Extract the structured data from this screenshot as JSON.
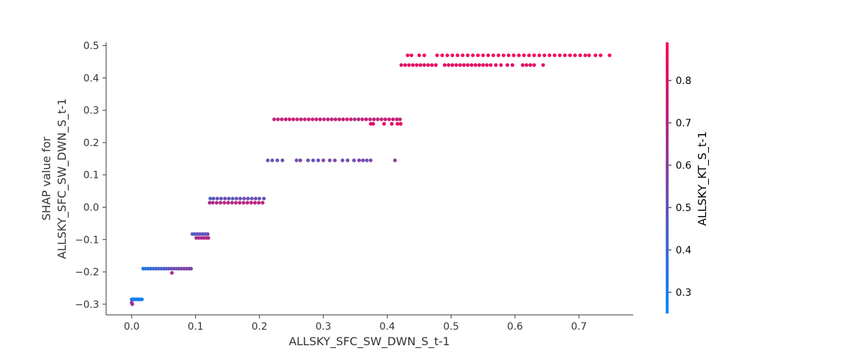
{
  "chart_data": {
    "type": "scatter",
    "xlabel": "ALLSKY_SFC_SW_DWN_S_t-1",
    "ylabel_lines": [
      "SHAP value for",
      "ALLSKY_SFC_SW_DWN_S_t-1"
    ],
    "colorbar_label": "ALLSKY_KT_S_t-1",
    "xlim": [
      -0.04,
      0.785
    ],
    "ylim": [
      -0.333,
      0.51
    ],
    "x_ticks": [
      0.0,
      0.1,
      0.2,
      0.3,
      0.4,
      0.5,
      0.6,
      0.7
    ],
    "x_tick_labels": [
      "0.0",
      "0.1",
      "0.2",
      "0.3",
      "0.4",
      "0.5",
      "0.6",
      "0.7"
    ],
    "y_ticks": [
      -0.3,
      -0.2,
      -0.1,
      0.0,
      0.1,
      0.2,
      0.3,
      0.4,
      0.5
    ],
    "y_tick_labels": [
      "−0.3",
      "−0.2",
      "−0.1",
      "0.0",
      "0.1",
      "0.2",
      "0.3",
      "0.4",
      "0.5"
    ],
    "colorbar_range": [
      0.25,
      0.89
    ],
    "colorbar_ticks": [
      0.3,
      0.4,
      0.5,
      0.6,
      0.7,
      0.8
    ],
    "colorbar_tick_labels": [
      "0.3",
      "0.4",
      "0.5",
      "0.6",
      "0.7",
      "0.8"
    ],
    "colormap": [
      "#008afb",
      "#ff0052"
    ],
    "points": [
      {
        "x": 0.0,
        "y": -0.285,
        "c": 0.3
      },
      {
        "x": 0.002,
        "y": -0.285,
        "c": 0.31
      },
      {
        "x": 0.004,
        "y": -0.285,
        "c": 0.29
      },
      {
        "x": 0.006,
        "y": -0.285,
        "c": 0.32
      },
      {
        "x": 0.008,
        "y": -0.285,
        "c": 0.3
      },
      {
        "x": 0.01,
        "y": -0.285,
        "c": 0.31
      },
      {
        "x": 0.012,
        "y": -0.285,
        "c": 0.33
      },
      {
        "x": 0.014,
        "y": -0.285,
        "c": 0.3
      },
      {
        "x": 0.016,
        "y": -0.285,
        "c": 0.29
      },
      {
        "x": 0.0,
        "y": -0.295,
        "c": 0.62
      },
      {
        "x": 0.001,
        "y": -0.3,
        "c": 0.68
      },
      {
        "x": 0.018,
        "y": -0.19,
        "c": 0.33
      },
      {
        "x": 0.022,
        "y": -0.19,
        "c": 0.35
      },
      {
        "x": 0.026,
        "y": -0.19,
        "c": 0.38
      },
      {
        "x": 0.03,
        "y": -0.19,
        "c": 0.4
      },
      {
        "x": 0.034,
        "y": -0.19,
        "c": 0.36
      },
      {
        "x": 0.038,
        "y": -0.19,
        "c": 0.42
      },
      {
        "x": 0.042,
        "y": -0.19,
        "c": 0.45
      },
      {
        "x": 0.046,
        "y": -0.19,
        "c": 0.39
      },
      {
        "x": 0.05,
        "y": -0.19,
        "c": 0.47
      },
      {
        "x": 0.054,
        "y": -0.19,
        "c": 0.5
      },
      {
        "x": 0.058,
        "y": -0.19,
        "c": 0.44
      },
      {
        "x": 0.062,
        "y": -0.19,
        "c": 0.52
      },
      {
        "x": 0.066,
        "y": -0.19,
        "c": 0.55
      },
      {
        "x": 0.07,
        "y": -0.19,
        "c": 0.48
      },
      {
        "x": 0.074,
        "y": -0.19,
        "c": 0.57
      },
      {
        "x": 0.078,
        "y": -0.19,
        "c": 0.53
      },
      {
        "x": 0.082,
        "y": -0.19,
        "c": 0.6
      },
      {
        "x": 0.086,
        "y": -0.19,
        "c": 0.56
      },
      {
        "x": 0.09,
        "y": -0.19,
        "c": 0.58
      },
      {
        "x": 0.093,
        "y": -0.19,
        "c": 0.54
      },
      {
        "x": 0.063,
        "y": -0.203,
        "c": 0.66
      },
      {
        "x": 0.095,
        "y": -0.083,
        "c": 0.45
      },
      {
        "x": 0.099,
        "y": -0.083,
        "c": 0.48
      },
      {
        "x": 0.103,
        "y": -0.083,
        "c": 0.5
      },
      {
        "x": 0.107,
        "y": -0.083,
        "c": 0.47
      },
      {
        "x": 0.111,
        "y": -0.083,
        "c": 0.52
      },
      {
        "x": 0.115,
        "y": -0.083,
        "c": 0.49
      },
      {
        "x": 0.119,
        "y": -0.083,
        "c": 0.51
      },
      {
        "x": 0.101,
        "y": -0.095,
        "c": 0.66
      },
      {
        "x": 0.105,
        "y": -0.095,
        "c": 0.7
      },
      {
        "x": 0.109,
        "y": -0.095,
        "c": 0.68
      },
      {
        "x": 0.113,
        "y": -0.095,
        "c": 0.72
      },
      {
        "x": 0.117,
        "y": -0.095,
        "c": 0.69
      },
      {
        "x": 0.12,
        "y": -0.095,
        "c": 0.71
      },
      {
        "x": 0.123,
        "y": 0.027,
        "c": 0.45
      },
      {
        "x": 0.128,
        "y": 0.027,
        "c": 0.48
      },
      {
        "x": 0.134,
        "y": 0.027,
        "c": 0.52
      },
      {
        "x": 0.14,
        "y": 0.027,
        "c": 0.47
      },
      {
        "x": 0.146,
        "y": 0.027,
        "c": 0.55
      },
      {
        "x": 0.152,
        "y": 0.027,
        "c": 0.5
      },
      {
        "x": 0.158,
        "y": 0.027,
        "c": 0.46
      },
      {
        "x": 0.164,
        "y": 0.027,
        "c": 0.53
      },
      {
        "x": 0.17,
        "y": 0.027,
        "c": 0.49
      },
      {
        "x": 0.176,
        "y": 0.027,
        "c": 0.57
      },
      {
        "x": 0.182,
        "y": 0.027,
        "c": 0.51
      },
      {
        "x": 0.188,
        "y": 0.027,
        "c": 0.48
      },
      {
        "x": 0.194,
        "y": 0.027,
        "c": 0.54
      },
      {
        "x": 0.2,
        "y": 0.027,
        "c": 0.5
      },
      {
        "x": 0.207,
        "y": 0.027,
        "c": 0.52
      },
      {
        "x": 0.122,
        "y": 0.014,
        "c": 0.66
      },
      {
        "x": 0.127,
        "y": 0.014,
        "c": 0.7
      },
      {
        "x": 0.133,
        "y": 0.014,
        "c": 0.68
      },
      {
        "x": 0.139,
        "y": 0.014,
        "c": 0.72
      },
      {
        "x": 0.145,
        "y": 0.014,
        "c": 0.69
      },
      {
        "x": 0.151,
        "y": 0.014,
        "c": 0.74
      },
      {
        "x": 0.157,
        "y": 0.014,
        "c": 0.67
      },
      {
        "x": 0.163,
        "y": 0.014,
        "c": 0.71
      },
      {
        "x": 0.169,
        "y": 0.014,
        "c": 0.75
      },
      {
        "x": 0.175,
        "y": 0.014,
        "c": 0.68
      },
      {
        "x": 0.181,
        "y": 0.014,
        "c": 0.73
      },
      {
        "x": 0.187,
        "y": 0.014,
        "c": 0.7
      },
      {
        "x": 0.193,
        "y": 0.014,
        "c": 0.76
      },
      {
        "x": 0.199,
        "y": 0.014,
        "c": 0.69
      },
      {
        "x": 0.205,
        "y": 0.014,
        "c": 0.72
      },
      {
        "x": 0.213,
        "y": 0.145,
        "c": 0.5
      },
      {
        "x": 0.22,
        "y": 0.145,
        "c": 0.53
      },
      {
        "x": 0.228,
        "y": 0.145,
        "c": 0.48
      },
      {
        "x": 0.236,
        "y": 0.145,
        "c": 0.55
      },
      {
        "x": 0.258,
        "y": 0.145,
        "c": 0.52
      },
      {
        "x": 0.264,
        "y": 0.145,
        "c": 0.57
      },
      {
        "x": 0.276,
        "y": 0.145,
        "c": 0.51
      },
      {
        "x": 0.284,
        "y": 0.145,
        "c": 0.54
      },
      {
        "x": 0.292,
        "y": 0.145,
        "c": 0.49
      },
      {
        "x": 0.3,
        "y": 0.145,
        "c": 0.56
      },
      {
        "x": 0.31,
        "y": 0.145,
        "c": 0.53
      },
      {
        "x": 0.318,
        "y": 0.145,
        "c": 0.59
      },
      {
        "x": 0.33,
        "y": 0.145,
        "c": 0.5
      },
      {
        "x": 0.338,
        "y": 0.145,
        "c": 0.55
      },
      {
        "x": 0.348,
        "y": 0.145,
        "c": 0.52
      },
      {
        "x": 0.356,
        "y": 0.145,
        "c": 0.58
      },
      {
        "x": 0.362,
        "y": 0.145,
        "c": 0.54
      },
      {
        "x": 0.368,
        "y": 0.145,
        "c": 0.51
      },
      {
        "x": 0.374,
        "y": 0.145,
        "c": 0.56
      },
      {
        "x": 0.412,
        "y": 0.145,
        "c": 0.6
      },
      {
        "x": 0.223,
        "y": 0.272,
        "c": 0.72
      },
      {
        "x": 0.229,
        "y": 0.272,
        "c": 0.75
      },
      {
        "x": 0.235,
        "y": 0.272,
        "c": 0.7
      },
      {
        "x": 0.241,
        "y": 0.272,
        "c": 0.78
      },
      {
        "x": 0.247,
        "y": 0.272,
        "c": 0.74
      },
      {
        "x": 0.253,
        "y": 0.272,
        "c": 0.8
      },
      {
        "x": 0.259,
        "y": 0.272,
        "c": 0.71
      },
      {
        "x": 0.265,
        "y": 0.272,
        "c": 0.76
      },
      {
        "x": 0.271,
        "y": 0.272,
        "c": 0.73
      },
      {
        "x": 0.277,
        "y": 0.272,
        "c": 0.79
      },
      {
        "x": 0.283,
        "y": 0.272,
        "c": 0.7
      },
      {
        "x": 0.289,
        "y": 0.272,
        "c": 0.77
      },
      {
        "x": 0.295,
        "y": 0.272,
        "c": 0.74
      },
      {
        "x": 0.301,
        "y": 0.272,
        "c": 0.72
      },
      {
        "x": 0.307,
        "y": 0.272,
        "c": 0.78
      },
      {
        "x": 0.313,
        "y": 0.272,
        "c": 0.68
      },
      {
        "x": 0.319,
        "y": 0.272,
        "c": 0.75
      },
      {
        "x": 0.325,
        "y": 0.272,
        "c": 0.71
      },
      {
        "x": 0.331,
        "y": 0.272,
        "c": 0.8
      },
      {
        "x": 0.337,
        "y": 0.272,
        "c": 0.73
      },
      {
        "x": 0.343,
        "y": 0.272,
        "c": 0.76
      },
      {
        "x": 0.349,
        "y": 0.272,
        "c": 0.66
      },
      {
        "x": 0.355,
        "y": 0.272,
        "c": 0.74
      },
      {
        "x": 0.361,
        "y": 0.272,
        "c": 0.7
      },
      {
        "x": 0.367,
        "y": 0.272,
        "c": 0.78
      },
      {
        "x": 0.373,
        "y": 0.272,
        "c": 0.72
      },
      {
        "x": 0.379,
        "y": 0.272,
        "c": 0.75
      },
      {
        "x": 0.385,
        "y": 0.272,
        "c": 0.69
      },
      {
        "x": 0.391,
        "y": 0.272,
        "c": 0.77
      },
      {
        "x": 0.397,
        "y": 0.272,
        "c": 0.73
      },
      {
        "x": 0.403,
        "y": 0.272,
        "c": 0.79
      },
      {
        "x": 0.409,
        "y": 0.272,
        "c": 0.74
      },
      {
        "x": 0.415,
        "y": 0.272,
        "c": 0.76
      },
      {
        "x": 0.42,
        "y": 0.272,
        "c": 0.72
      },
      {
        "x": 0.374,
        "y": 0.258,
        "c": 0.8
      },
      {
        "x": 0.378,
        "y": 0.258,
        "c": 0.82
      },
      {
        "x": 0.395,
        "y": 0.258,
        "c": 0.84
      },
      {
        "x": 0.407,
        "y": 0.258,
        "c": 0.81
      },
      {
        "x": 0.416,
        "y": 0.258,
        "c": 0.83
      },
      {
        "x": 0.421,
        "y": 0.258,
        "c": 0.85
      },
      {
        "x": 0.432,
        "y": 0.47,
        "c": 0.86
      },
      {
        "x": 0.438,
        "y": 0.47,
        "c": 0.87
      },
      {
        "x": 0.45,
        "y": 0.47,
        "c": 0.85
      },
      {
        "x": 0.458,
        "y": 0.47,
        "c": 0.88
      },
      {
        "x": 0.478,
        "y": 0.47,
        "c": 0.86
      },
      {
        "x": 0.486,
        "y": 0.47,
        "c": 0.87
      },
      {
        "x": 0.494,
        "y": 0.47,
        "c": 0.85
      },
      {
        "x": 0.502,
        "y": 0.47,
        "c": 0.88
      },
      {
        "x": 0.51,
        "y": 0.47,
        "c": 0.86
      },
      {
        "x": 0.518,
        "y": 0.47,
        "c": 0.87
      },
      {
        "x": 0.526,
        "y": 0.47,
        "c": 0.85
      },
      {
        "x": 0.534,
        "y": 0.47,
        "c": 0.88
      },
      {
        "x": 0.542,
        "y": 0.47,
        "c": 0.86
      },
      {
        "x": 0.55,
        "y": 0.47,
        "c": 0.87
      },
      {
        "x": 0.558,
        "y": 0.47,
        "c": 0.85
      },
      {
        "x": 0.566,
        "y": 0.47,
        "c": 0.88
      },
      {
        "x": 0.574,
        "y": 0.47,
        "c": 0.86
      },
      {
        "x": 0.582,
        "y": 0.47,
        "c": 0.87
      },
      {
        "x": 0.59,
        "y": 0.47,
        "c": 0.85
      },
      {
        "x": 0.598,
        "y": 0.47,
        "c": 0.88
      },
      {
        "x": 0.606,
        "y": 0.47,
        "c": 0.86
      },
      {
        "x": 0.614,
        "y": 0.47,
        "c": 0.87
      },
      {
        "x": 0.622,
        "y": 0.47,
        "c": 0.85
      },
      {
        "x": 0.63,
        "y": 0.47,
        "c": 0.88
      },
      {
        "x": 0.638,
        "y": 0.47,
        "c": 0.86
      },
      {
        "x": 0.646,
        "y": 0.47,
        "c": 0.87
      },
      {
        "x": 0.654,
        "y": 0.47,
        "c": 0.85
      },
      {
        "x": 0.662,
        "y": 0.47,
        "c": 0.88
      },
      {
        "x": 0.67,
        "y": 0.47,
        "c": 0.86
      },
      {
        "x": 0.678,
        "y": 0.47,
        "c": 0.87
      },
      {
        "x": 0.686,
        "y": 0.47,
        "c": 0.85
      },
      {
        "x": 0.694,
        "y": 0.47,
        "c": 0.88
      },
      {
        "x": 0.702,
        "y": 0.47,
        "c": 0.86
      },
      {
        "x": 0.71,
        "y": 0.47,
        "c": 0.87
      },
      {
        "x": 0.716,
        "y": 0.47,
        "c": 0.85
      },
      {
        "x": 0.726,
        "y": 0.47,
        "c": 0.88
      },
      {
        "x": 0.734,
        "y": 0.47,
        "c": 0.86
      },
      {
        "x": 0.748,
        "y": 0.47,
        "c": 0.87
      },
      {
        "x": 0.422,
        "y": 0.44,
        "c": 0.8
      },
      {
        "x": 0.428,
        "y": 0.44,
        "c": 0.82
      },
      {
        "x": 0.434,
        "y": 0.44,
        "c": 0.79
      },
      {
        "x": 0.44,
        "y": 0.44,
        "c": 0.83
      },
      {
        "x": 0.446,
        "y": 0.44,
        "c": 0.81
      },
      {
        "x": 0.452,
        "y": 0.44,
        "c": 0.84
      },
      {
        "x": 0.458,
        "y": 0.44,
        "c": 0.8
      },
      {
        "x": 0.464,
        "y": 0.44,
        "c": 0.82
      },
      {
        "x": 0.47,
        "y": 0.44,
        "c": 0.85
      },
      {
        "x": 0.476,
        "y": 0.44,
        "c": 0.81
      },
      {
        "x": 0.49,
        "y": 0.44,
        "c": 0.83
      },
      {
        "x": 0.496,
        "y": 0.44,
        "c": 0.8
      },
      {
        "x": 0.502,
        "y": 0.44,
        "c": 0.84
      },
      {
        "x": 0.508,
        "y": 0.44,
        "c": 0.82
      },
      {
        "x": 0.514,
        "y": 0.44,
        "c": 0.79
      },
      {
        "x": 0.52,
        "y": 0.44,
        "c": 0.83
      },
      {
        "x": 0.526,
        "y": 0.44,
        "c": 0.81
      },
      {
        "x": 0.532,
        "y": 0.44,
        "c": 0.85
      },
      {
        "x": 0.538,
        "y": 0.44,
        "c": 0.8
      },
      {
        "x": 0.544,
        "y": 0.44,
        "c": 0.82
      },
      {
        "x": 0.55,
        "y": 0.44,
        "c": 0.84
      },
      {
        "x": 0.556,
        "y": 0.44,
        "c": 0.81
      },
      {
        "x": 0.562,
        "y": 0.44,
        "c": 0.83
      },
      {
        "x": 0.57,
        "y": 0.44,
        "c": 0.8
      },
      {
        "x": 0.578,
        "y": 0.44,
        "c": 0.82
      },
      {
        "x": 0.588,
        "y": 0.44,
        "c": 0.84
      },
      {
        "x": 0.596,
        "y": 0.44,
        "c": 0.81
      },
      {
        "x": 0.612,
        "y": 0.44,
        "c": 0.83
      },
      {
        "x": 0.618,
        "y": 0.44,
        "c": 0.8
      },
      {
        "x": 0.624,
        "y": 0.44,
        "c": 0.82
      },
      {
        "x": 0.63,
        "y": 0.44,
        "c": 0.84
      },
      {
        "x": 0.644,
        "y": 0.44,
        "c": 0.81
      }
    ]
  }
}
